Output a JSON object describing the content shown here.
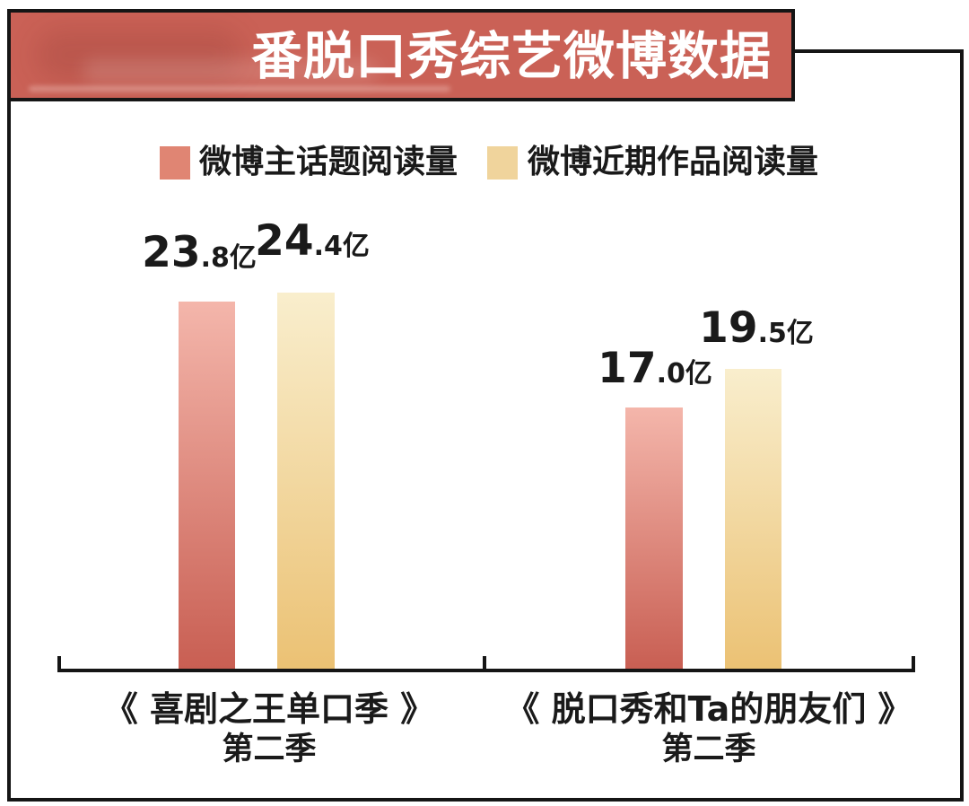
{
  "header": {
    "title": "番脱口秀综艺微博数据"
  },
  "legend": {
    "items": [
      {
        "label": "微博主话题阅读量",
        "color": "#E08573"
      },
      {
        "label": "微博近期作品阅读量",
        "color": "#F0D49C"
      }
    ]
  },
  "chart": {
    "unit": "亿",
    "groups": [
      {
        "label_line1": "《 喜剧之王单口季 》",
        "label_line2": "第二季",
        "bars": [
          {
            "series": "微博主话题阅读量",
            "value": 23.8,
            "value_big": "23",
            "value_small": ".8",
            "unit": "亿"
          },
          {
            "series": "微博近期作品阅读量",
            "value": 24.4,
            "value_big": "24",
            "value_small": ".4",
            "unit": "亿"
          }
        ]
      },
      {
        "label_line1": "《 脱口秀和Ta的朋友们 》",
        "label_line2": "第二季",
        "bars": [
          {
            "series": "微博主话题阅读量",
            "value": 17.0,
            "value_big": "17",
            "value_small": ".0",
            "unit": "亿"
          },
          {
            "series": "微博近期作品阅读量",
            "value": 19.5,
            "value_big": "19",
            "value_small": ".5",
            "unit": "亿"
          }
        ]
      }
    ]
  },
  "colors": {
    "banner_bg": "#CA6156",
    "border": "#151515",
    "text": "#1A1A1A",
    "title_text": "#FFFFFF",
    "bar_red_top": "#F4B6AB",
    "bar_red_bottom": "#C85E52",
    "bar_yellow_top": "#F9EECD",
    "bar_yellow_bottom": "#EBC173",
    "legend_red": "#E08573",
    "legend_yellow": "#F0D49C"
  },
  "chart_data": {
    "type": "bar",
    "title": "番脱口秀综艺微博数据",
    "categories": [
      "《喜剧之王单口季》第二季",
      "《脱口秀和Ta的朋友们》第二季"
    ],
    "series": [
      {
        "name": "微博主话题阅读量",
        "values": [
          23.8,
          17.0
        ],
        "color": "#E08573"
      },
      {
        "name": "微博近期作品阅读量",
        "values": [
          24.4,
          19.5
        ],
        "color": "#F0D49C"
      }
    ],
    "unit": "亿",
    "value_labels": [
      [
        "23.8亿",
        "24.4亿"
      ],
      [
        "17.0亿",
        "19.5亿"
      ]
    ],
    "ylim": [
      0,
      26
    ],
    "grid": false,
    "legend_position": "top"
  }
}
